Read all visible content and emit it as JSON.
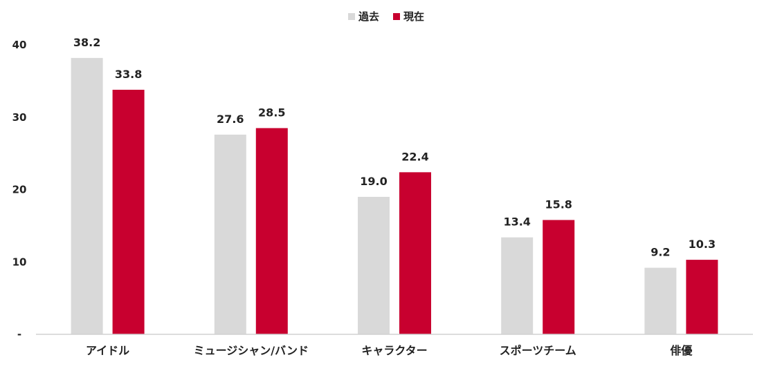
{
  "chart_data": {
    "type": "bar",
    "title": "",
    "xlabel": "",
    "ylabel": "",
    "categories": [
      "アイドル",
      "ミュージシャン/バンド",
      "キャラクター",
      "スポーツチーム",
      "俳優"
    ],
    "series": [
      {
        "name": "過去",
        "color": "#d9d9d9",
        "values": [
          38.2,
          27.6,
          19.0,
          13.4,
          9.2
        ]
      },
      {
        "name": "現在",
        "color": "#c8002f",
        "values": [
          33.8,
          28.5,
          22.4,
          15.8,
          10.3
        ]
      }
    ],
    "data_labels": [
      [
        "38.2",
        "27.6",
        "19.0",
        "13.4",
        "9.2"
      ],
      [
        "33.8",
        "28.5",
        "22.4",
        "15.8",
        "10.3"
      ]
    ],
    "ylim": [
      0,
      40
    ],
    "yticks": [
      0,
      10,
      20,
      30,
      40
    ],
    "ytick_labels": [
      "-",
      "10",
      "20",
      "30",
      "40"
    ],
    "grid": false,
    "legend_position": "top-center"
  }
}
